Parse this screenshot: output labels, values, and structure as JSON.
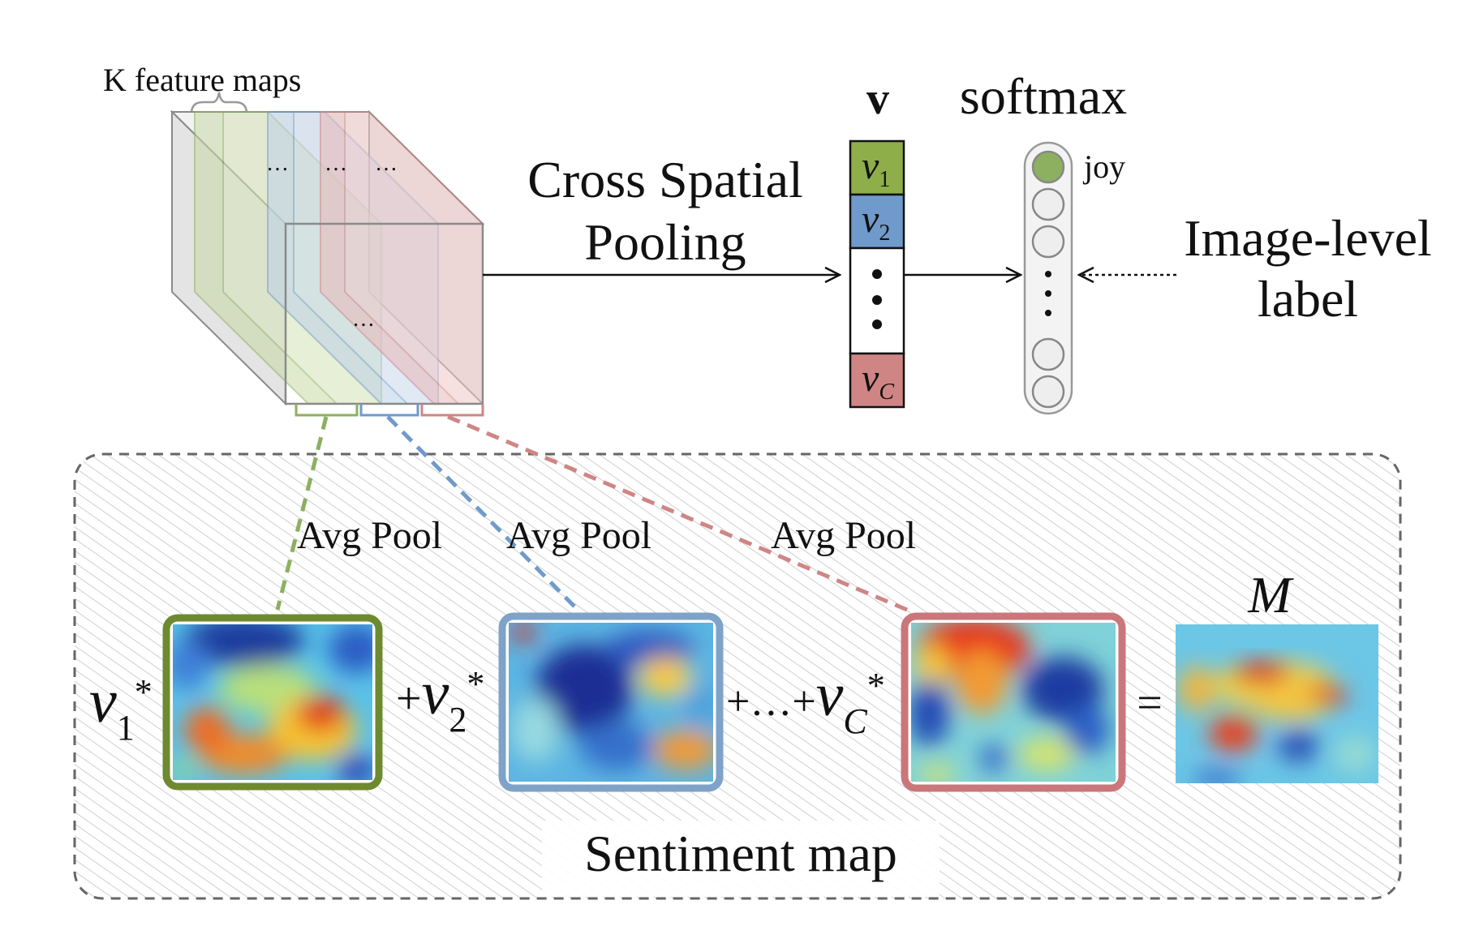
{
  "feature_maps": {
    "label": "K feature maps",
    "ellipsis": "…"
  },
  "pooling": {
    "line1": "Cross Spatial",
    "line2": "Pooling"
  },
  "vector": {
    "title": "v",
    "cells": [
      {
        "var": "v",
        "sub": "1",
        "color": "#8dae48"
      },
      {
        "var": "v",
        "sub": "2",
        "color": "#6f9acb"
      },
      {
        "var": "",
        "sub": "",
        "color": "#ffffff"
      },
      {
        "var": "v",
        "sub": "C",
        "color": "#d08585"
      }
    ]
  },
  "softmax": {
    "title": "softmax",
    "top_label": "joy",
    "active_color": "#8cb060"
  },
  "image_label": {
    "line1": "Image-level",
    "line2": "label"
  },
  "sentiment": {
    "caption": "Sentiment map",
    "avg_pool_label": "Avg Pool",
    "result_label": "M",
    "terms": [
      {
        "prefix": "",
        "var": "v",
        "sub": "1",
        "suffix": "*",
        "frame_color": "#6e8a30",
        "link_color": "#8cb060"
      },
      {
        "prefix": "+",
        "var": "v",
        "sub": "2",
        "suffix": "*",
        "frame_color": "#7fa3c8",
        "link_color": "#6f9acb"
      },
      {
        "prefix": "+…+",
        "var": "v",
        "sub": "C",
        "suffix": "*",
        "frame_color": "#c9777a",
        "link_color": "#d08585"
      }
    ],
    "equals": "="
  },
  "colors": {
    "green": "#8cb060",
    "blue": "#6f9acb",
    "red": "#d08585",
    "dash_border": "#666666"
  }
}
